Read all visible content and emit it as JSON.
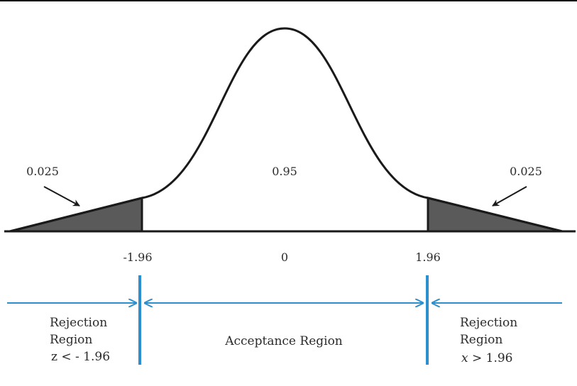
{
  "diagram": {
    "tail_left_prob": "0.025",
    "center_prob": "0.95",
    "tail_right_prob": "0.025",
    "tick_left": "-1.96",
    "tick_center": "0",
    "tick_right": "1.96",
    "rejection_left": {
      "line1": "Rejection",
      "line2": "Region",
      "line3": "z < - 1.96"
    },
    "acceptance": "Acceptance Region",
    "rejection_right": {
      "line1": "Rejection",
      "line2": "Region",
      "line3_var": "x",
      "line3_rest": " > 1.96"
    },
    "colors": {
      "curve": "#1a1a1a",
      "tail_fill": "#5a5a5a",
      "region_line": "#2e8fce",
      "text": "#2b2b2b"
    }
  }
}
